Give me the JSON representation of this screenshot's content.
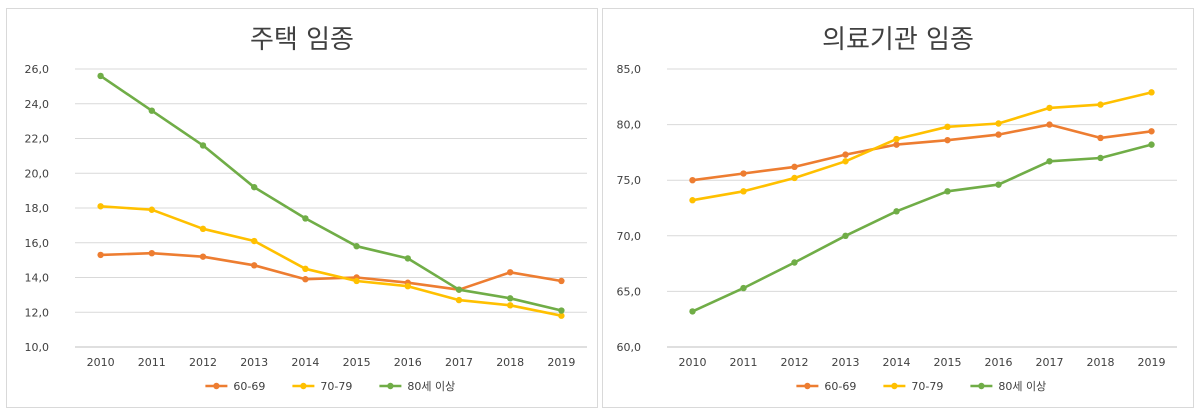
{
  "chart_data": [
    {
      "type": "line",
      "title": "주택 임종",
      "categories": [
        "2010",
        "2011",
        "2012",
        "2013",
        "2014",
        "2015",
        "2016",
        "2017",
        "2018",
        "2019"
      ],
      "ylim": [
        10,
        26
      ],
      "ystep": 2,
      "ytick_labels": [
        "10,0",
        "12,0",
        "14,0",
        "16,0",
        "18,0",
        "20,0",
        "22,0",
        "24,0",
        "26,0"
      ],
      "grid": true,
      "legend": "bottom",
      "series": [
        {
          "name": "60-69",
          "color": "#ED7D31",
          "values": [
            15.3,
            15.4,
            15.2,
            14.7,
            13.9,
            14.0,
            13.7,
            13.3,
            14.3,
            13.8
          ]
        },
        {
          "name": "70-79",
          "color": "#FFC000",
          "values": [
            18.1,
            17.9,
            16.8,
            16.1,
            14.5,
            13.8,
            13.5,
            12.7,
            12.4,
            11.8
          ]
        },
        {
          "name": "80세 이상",
          "color": "#70AD47",
          "values": [
            25.6,
            23.6,
            21.6,
            19.2,
            17.4,
            15.8,
            15.1,
            13.3,
            12.8,
            12.1
          ]
        }
      ]
    },
    {
      "type": "line",
      "title": "의료기관 임종",
      "categories": [
        "2010",
        "2011",
        "2012",
        "2013",
        "2014",
        "2015",
        "2016",
        "2017",
        "2018",
        "2019"
      ],
      "ylim": [
        60,
        85
      ],
      "ystep": 5,
      "ytick_labels": [
        "60,0",
        "65,0",
        "70,0",
        "75,0",
        "80,0",
        "85,0"
      ],
      "grid": true,
      "legend": "bottom",
      "series": [
        {
          "name": "60-69",
          "color": "#ED7D31",
          "values": [
            75.0,
            75.6,
            76.2,
            77.3,
            78.2,
            78.6,
            79.1,
            80.0,
            78.8,
            79.4
          ]
        },
        {
          "name": "70-79",
          "color": "#FFC000",
          "values": [
            73.2,
            74.0,
            75.2,
            76.7,
            78.7,
            79.8,
            80.1,
            81.5,
            81.8,
            82.9
          ]
        },
        {
          "name": "80세 이상",
          "color": "#70AD47",
          "values": [
            63.2,
            65.3,
            67.6,
            70.0,
            72.2,
            74.0,
            74.6,
            76.7,
            77.0,
            78.2
          ]
        }
      ]
    }
  ]
}
